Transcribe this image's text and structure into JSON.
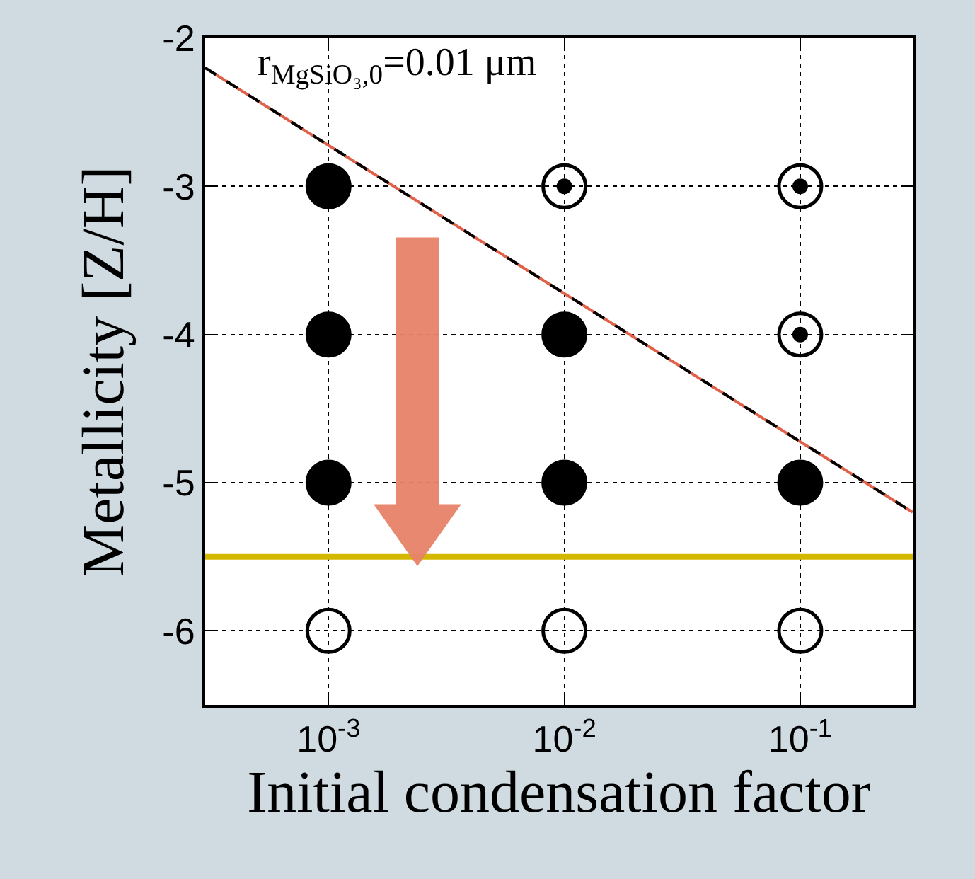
{
  "chart_data": {
    "type": "scatter",
    "xlabel": "Initial condensation factor",
    "ylabel": "Metallicity [Z/H]",
    "annotations": [
      "r$_{MgSiO₃,0}$=0.01 μm"
    ],
    "log": "x",
    "xlim": [
      0.0003,
      0.3
    ],
    "xticks": [
      {
        "value": 0.001,
        "label": "10$^{-3}$"
      },
      {
        "value": 0.01,
        "label": "10$^{-2}$"
      },
      {
        "value": 0.1,
        "label": "10$^{-1}$"
      }
    ],
    "ylim": [
      -6.5,
      -2
    ],
    "yticks": [
      -6,
      -5,
      -4,
      -3,
      -2
    ],
    "grid": true,
    "series": [
      {
        "marker": "circle",
        "color": "#000000",
        "x": [
          0.001,
          0.001,
          0.001,
          0.01,
          0.01,
          0.1
        ],
        "values": [
          -3,
          -4,
          -5,
          -4,
          -5,
          -5
        ]
      },
      {
        "marker": "circle-open-dot",
        "color": "#000000",
        "x": [
          0.01,
          0.1,
          0.1
        ],
        "values": [
          -3,
          -3,
          -4
        ]
      },
      {
        "marker": "circle-open",
        "color": "#000000",
        "x": [
          0.001,
          0.01,
          0.1
        ],
        "values": [
          -6,
          -6,
          -6
        ]
      },
      {
        "type": "line",
        "line_style": "solid",
        "color": "#e0604a",
        "x": [
          0.0003,
          0.3
        ],
        "values": [
          -2.2,
          -5.2
        ]
      },
      {
        "type": "line",
        "line_style": "dashed",
        "color": "#000000",
        "x": [
          0.0003,
          0.3
        ],
        "values": [
          -2.2,
          -5.2
        ]
      }
    ],
    "ref_lines": [
      {
        "axis": "y",
        "value": -5.5,
        "label": null,
        "color": "#d4b800"
      }
    ]
  }
}
